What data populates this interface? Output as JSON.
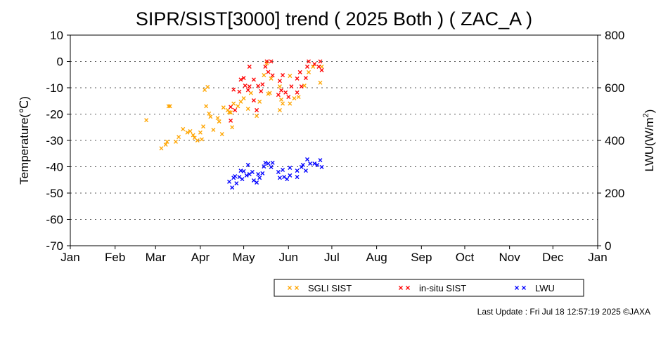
{
  "chart_data": {
    "type": "scatter",
    "title": "SIPR/SIST[3000] trend ( 2025 Both ) ( ZAC_A )",
    "ylabel": "Temperature(℃)",
    "y2label_base": "LWU(W/m",
    "y2label_sup": "2",
    "y2label_end": ")",
    "ylim": [
      -70,
      10
    ],
    "y2lim": [
      0,
      800
    ],
    "yticks": [
      "10",
      "0",
      "-10",
      "-20",
      "-30",
      "-40",
      "-50",
      "-60",
      "-70"
    ],
    "y2ticks": [
      "800",
      "600",
      "400",
      "200",
      "0"
    ],
    "xticks": [
      "Jan",
      "Feb",
      "Mar",
      "Apr",
      "May",
      "Jun",
      "Jul",
      "Aug",
      "Sep",
      "Oct",
      "Nov",
      "Dec",
      "Jan"
    ],
    "grid": "horizontal dotted",
    "x_unit": "day of year",
    "legend_placement": "bottom",
    "series": [
      {
        "name": "SGLI SIST",
        "color": "#ffa500",
        "axis": "left",
        "points": [
          [
            52.6,
            -22.3
          ],
          [
            68,
            -17
          ],
          [
            69,
            -17
          ],
          [
            63,
            -33
          ],
          [
            66,
            -31.6
          ],
          [
            67,
            -30.5
          ],
          [
            73,
            -30.5
          ],
          [
            75,
            -28.7
          ],
          [
            78,
            -25.7
          ],
          [
            81,
            -27
          ],
          [
            83,
            -26.5
          ],
          [
            85,
            -28
          ],
          [
            88,
            -30
          ],
          [
            91,
            -29.6
          ],
          [
            90,
            -27
          ],
          [
            86,
            -29
          ],
          [
            92,
            -24.7
          ],
          [
            93,
            -10.8
          ],
          [
            95,
            -9.7
          ],
          [
            94,
            -17
          ],
          [
            96,
            -19.8
          ],
          [
            97,
            -21
          ],
          [
            99,
            -26
          ],
          [
            102,
            -21.5
          ],
          [
            103,
            -22.8
          ],
          [
            105,
            -27.6
          ],
          [
            106,
            -17.5
          ],
          [
            109,
            -18.5
          ],
          [
            111,
            -19.4
          ],
          [
            112,
            -25
          ],
          [
            110,
            -19.3
          ],
          [
            113,
            -16
          ],
          [
            116,
            -17
          ],
          [
            118,
            -15.3
          ],
          [
            120,
            -14
          ],
          [
            125,
            -12
          ],
          [
            123,
            -18
          ],
          [
            129,
            -20.7
          ],
          [
            131,
            -15.3
          ],
          [
            134,
            -5.2
          ],
          [
            136,
            -0.7
          ],
          [
            139,
            -6.5
          ],
          [
            137,
            -12.3
          ],
          [
            138,
            -12
          ],
          [
            145,
            -9.5
          ],
          [
            146,
            -14.5
          ],
          [
            147,
            -16
          ],
          [
            145,
            -18.5
          ],
          [
            152,
            -16
          ],
          [
            152,
            -5.5
          ],
          [
            155,
            -14
          ],
          [
            158,
            -13.5
          ],
          [
            162,
            -9.2
          ],
          [
            165,
            -4.1
          ],
          [
            168,
            -2
          ],
          [
            173,
            -8.1
          ],
          [
            174,
            -2
          ]
        ]
      },
      {
        "name": "in-situ SIST",
        "color": "#ff0000",
        "axis": "left",
        "points": [
          [
            111,
            -22.5
          ],
          [
            114,
            -18.5
          ],
          [
            111,
            -17.3
          ],
          [
            113,
            -10.7
          ],
          [
            118,
            -6.9
          ],
          [
            120,
            -6.3
          ],
          [
            117,
            -11.5
          ],
          [
            121,
            -9.2
          ],
          [
            123,
            -10.9
          ],
          [
            124,
            -9.5
          ],
          [
            127,
            -6.9
          ],
          [
            127,
            -14.8
          ],
          [
            130,
            -9.3
          ],
          [
            132,
            -11.3
          ],
          [
            133,
            -8.7
          ],
          [
            129,
            -18.5
          ],
          [
            124,
            -2
          ],
          [
            135,
            -2
          ],
          [
            136,
            0
          ],
          [
            139,
            0
          ],
          [
            137,
            -4
          ],
          [
            140,
            -5.3
          ],
          [
            145,
            -7.4
          ],
          [
            147,
            -5.2
          ],
          [
            146,
            -11
          ],
          [
            144,
            -12.7
          ],
          [
            149,
            -11.8
          ],
          [
            151,
            -13.5
          ],
          [
            153,
            -9.5
          ],
          [
            157,
            -6.5
          ],
          [
            157,
            -11.8
          ],
          [
            160,
            -9.5
          ],
          [
            159,
            -4.1
          ],
          [
            163,
            -6.3
          ],
          [
            164,
            -2
          ],
          [
            165,
            0
          ],
          [
            169,
            -1
          ],
          [
            172,
            -2
          ],
          [
            173,
            0
          ],
          [
            174,
            -3.3
          ]
        ]
      },
      {
        "name": "LWU",
        "color": "#0000ff",
        "axis": "right",
        "points": [
          [
            110,
            243
          ],
          [
            112,
            221
          ],
          [
            113,
            258
          ],
          [
            114,
            264
          ],
          [
            115,
            237
          ],
          [
            117,
            261
          ],
          [
            118,
            285
          ],
          [
            120,
            283
          ],
          [
            119,
            253
          ],
          [
            122,
            267
          ],
          [
            123,
            307
          ],
          [
            124,
            272
          ],
          [
            126,
            280
          ],
          [
            127,
            248
          ],
          [
            129,
            240
          ],
          [
            130,
            272
          ],
          [
            131,
            258
          ],
          [
            133,
            275
          ],
          [
            134,
            301
          ],
          [
            135,
            315
          ],
          [
            137,
            312
          ],
          [
            139,
            299
          ],
          [
            140,
            315
          ],
          [
            144,
            280
          ],
          [
            145,
            258
          ],
          [
            147,
            288
          ],
          [
            148,
            261
          ],
          [
            150,
            253
          ],
          [
            152,
            296
          ],
          [
            152,
            267
          ],
          [
            157,
            261
          ],
          [
            157,
            285
          ],
          [
            160,
            299
          ],
          [
            161,
            307
          ],
          [
            163,
            285
          ],
          [
            164,
            328
          ],
          [
            166,
            312
          ],
          [
            169,
            312
          ],
          [
            171,
            307
          ],
          [
            173,
            325
          ],
          [
            174,
            299
          ]
        ]
      }
    ]
  },
  "footer": "Last Update : Fri Jul 18 12:57:19 2025  ©JAXA"
}
